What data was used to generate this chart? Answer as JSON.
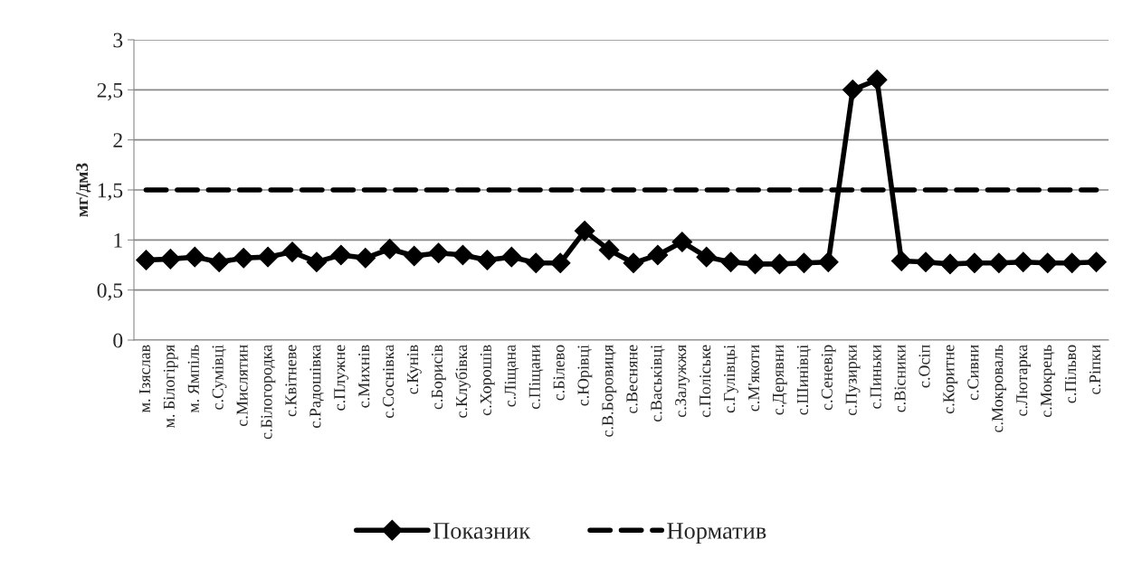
{
  "chart_data": {
    "type": "line",
    "ylabel": "мг/дм3",
    "categories": [
      "м. Ізяслав",
      "м. Білогірря",
      "м. Ямпіль",
      "с.Сумівці",
      "с.Мислятин",
      "с.Білогородка",
      "с.Квітневе",
      "с.Радошівка",
      "с.Плужне",
      "с.Михнів",
      "с.Соснівка",
      "с.Кунів",
      "с.Борисів",
      "с.Клубівка",
      "с.Хорошів",
      "с.Ліщана",
      "с.Піщани",
      "с.Білево",
      "с.Юрівці",
      "с.В.Боровиця",
      "с.Весняне",
      "с.Васьківці",
      "с.Залужжя",
      "с.Поліське",
      "с.Гулівцьі",
      "с.М'якоти",
      "с.Дерявни",
      "с.Шинівці",
      "с.Сеневір",
      "с.Пузирки",
      "с.Пиньки",
      "с.Вісники",
      "с.Осіп",
      "с.Коритне",
      "с.Сивни",
      "с.Мокроваль",
      "с.Лютарка",
      "с.Мокрець",
      "с.Пільво",
      "с.Ріпки"
    ],
    "series": [
      {
        "name": "Показник",
        "color": "#000000",
        "marker": "diamond",
        "line_style": "solid",
        "values": [
          0.8,
          0.81,
          0.83,
          0.78,
          0.82,
          0.83,
          0.88,
          0.78,
          0.85,
          0.82,
          0.91,
          0.84,
          0.87,
          0.85,
          0.8,
          0.83,
          0.77,
          0.77,
          1.09,
          0.9,
          0.77,
          0.85,
          0.98,
          0.83,
          0.78,
          0.76,
          0.76,
          0.77,
          0.78,
          2.5,
          2.6,
          0.79,
          0.78,
          0.76,
          0.77,
          0.77,
          0.78,
          0.77,
          0.77,
          0.78
        ]
      },
      {
        "name": "Норматив",
        "color": "#000000",
        "marker": "none",
        "line_style": "dashed",
        "values": [
          1.5,
          1.5,
          1.5,
          1.5,
          1.5,
          1.5,
          1.5,
          1.5,
          1.5,
          1.5,
          1.5,
          1.5,
          1.5,
          1.5,
          1.5,
          1.5,
          1.5,
          1.5,
          1.5,
          1.5,
          1.5,
          1.5,
          1.5,
          1.5,
          1.5,
          1.5,
          1.5,
          1.5,
          1.5,
          1.5,
          1.5,
          1.5,
          1.5,
          1.5,
          1.5,
          1.5,
          1.5,
          1.5,
          1.5,
          1.5
        ]
      }
    ],
    "ylim": [
      0,
      3
    ],
    "yticks": [
      0,
      {
        "value": 0.5,
        "label": "0,5"
      },
      1,
      {
        "value": 1.5,
        "label": "1,5"
      },
      2,
      {
        "value": 2.5,
        "label": "2,5"
      },
      3
    ],
    "grid": "y",
    "legend": "bottom"
  }
}
